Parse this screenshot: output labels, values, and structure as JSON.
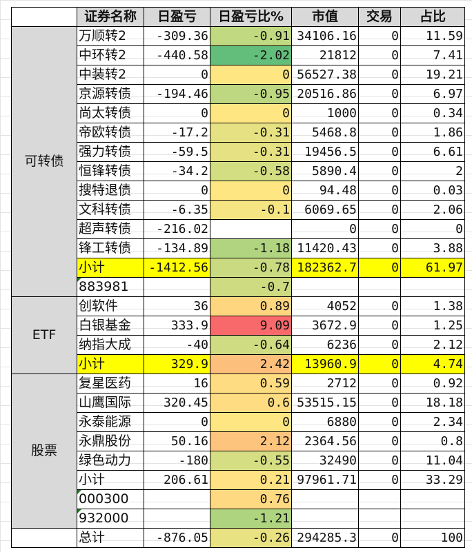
{
  "headers": [
    "",
    "证券名称",
    "日盈亏",
    "日盈亏比%",
    "市值",
    "交易",
    "占比"
  ],
  "groups": [
    {
      "label": "可转债",
      "rows": [
        {
          "name": "万顺转2",
          "pnl": "-309.36",
          "pct": "-0.91",
          "mv": "34106.16",
          "trade": "0",
          "share": "11.59",
          "color": "#c1d980"
        },
        {
          "name": "中环转2",
          "pnl": "-440.58",
          "pct": "-2.02",
          "mv": "21812",
          "trade": "0",
          "share": "7.41",
          "color": "#63be7b"
        },
        {
          "name": "中装转2",
          "pnl": "0",
          "pct": "0",
          "mv": "56527.38",
          "trade": "0",
          "share": "19.21",
          "color": "#fee783"
        },
        {
          "name": "京源转债",
          "pnl": "-194.46",
          "pct": "-0.95",
          "mv": "20516.86",
          "trade": "0",
          "share": "6.97",
          "color": "#bed881"
        },
        {
          "name": "尚太转债",
          "pnl": "0",
          "pct": "0",
          "mv": "1000",
          "trade": "0",
          "share": "0.34",
          "color": "#fee783"
        },
        {
          "name": "帝欧转债",
          "pnl": "-17.2",
          "pct": "-0.31",
          "mv": "5468.8",
          "trade": "0",
          "share": "1.86",
          "color": "#e6e283"
        },
        {
          "name": "强力转债",
          "pnl": "-59.5",
          "pct": "-0.31",
          "mv": "19456.5",
          "trade": "0",
          "share": "6.61",
          "color": "#e6e283"
        },
        {
          "name": "恒锋转债",
          "pnl": "-34.2",
          "pct": "-0.58",
          "mv": "5890.4",
          "trade": "0",
          "share": "2",
          "color": "#d3dd82"
        },
        {
          "name": "搜特退债",
          "pnl": "0",
          "pct": "0",
          "mv": "94.48",
          "trade": "0",
          "share": "0.03",
          "color": "#fee783"
        },
        {
          "name": "文科转债",
          "pnl": "-6.35",
          "pct": "-0.1",
          "mv": "6069.65",
          "trade": "0",
          "share": "2.06",
          "color": "#f5e583"
        },
        {
          "name": "超声转债",
          "pnl": "-216.02",
          "pct": "",
          "mv": "0",
          "trade": "0",
          "share": "0",
          "color": "#ffffff"
        },
        {
          "name": "锋工转债",
          "pnl": "-134.89",
          "pct": "-1.18",
          "mv": "11420.43",
          "trade": "0",
          "share": "3.88",
          "color": "#b0d47f"
        },
        {
          "name": "小计",
          "pnl": "-1412.56",
          "pct": "-0.78",
          "mv": "182362.7",
          "trade": "0",
          "share": "61.97",
          "color": "#c9da81",
          "subtotal": true
        },
        {
          "name": "883981",
          "pnl": "",
          "pct": "-0.7",
          "mv": "",
          "trade": "",
          "share": "",
          "color": "#cedb81",
          "flag": true
        }
      ]
    },
    {
      "label": "ETF",
      "rows": [
        {
          "name": "创软件",
          "pnl": "36",
          "pct": "0.89",
          "mv": "4052",
          "trade": "0",
          "share": "1.38",
          "color": "#fed680"
        },
        {
          "name": "白银基金",
          "pnl": "333.9",
          "pct": "9.09",
          "mv": "3672.9",
          "trade": "0",
          "share": "1.25",
          "color": "#f8696b"
        },
        {
          "name": "纳指大成",
          "pnl": "-40",
          "pct": "-0.64",
          "mv": "6236",
          "trade": "0",
          "share": "2.12",
          "color": "#cfdc81"
        },
        {
          "name": "小计",
          "pnl": "329.9",
          "pct": "2.42",
          "mv": "13960.9",
          "trade": "0",
          "share": "4.74",
          "color": "#fdc07c",
          "subtotal": true
        }
      ]
    },
    {
      "label": "股票",
      "rows": [
        {
          "name": "复星医药",
          "pnl": "16",
          "pct": "0.59",
          "mv": "2712",
          "trade": "0",
          "share": "0.92",
          "color": "#fedc81"
        },
        {
          "name": "山鹰国际",
          "pnl": "320.45",
          "pct": "0.6",
          "mv": "53515.15",
          "trade": "0",
          "share": "18.18",
          "color": "#fedc81"
        },
        {
          "name": "永泰能源",
          "pnl": "0",
          "pct": "0",
          "mv": "6880",
          "trade": "0",
          "share": "2.34",
          "color": "#fee783"
        },
        {
          "name": "永鼎股份",
          "pnl": "50.16",
          "pct": "2.12",
          "mv": "2364.56",
          "trade": "0",
          "share": "0.8",
          "color": "#fdc47d"
        },
        {
          "name": "绿色动力",
          "pnl": "-180",
          "pct": "-0.55",
          "mv": "32490",
          "trade": "0",
          "share": "11.04",
          "color": "#d5de82"
        },
        {
          "name": "小计",
          "pnl": "206.61",
          "pct": "0.21",
          "mv": "97961.71",
          "trade": "0",
          "share": "33.29",
          "color": "#ffe283"
        },
        {
          "name": "000300",
          "pnl": "",
          "pct": "0.76",
          "mv": "",
          "trade": "",
          "share": "",
          "color": "#fed981",
          "flag": true
        },
        {
          "name": "932000",
          "pnl": "",
          "pct": "-1.21",
          "mv": "",
          "trade": "",
          "share": "",
          "color": "#aed47f",
          "flag": true
        }
      ]
    },
    {
      "label": "",
      "rows": [
        {
          "name": "总计",
          "pnl": "-876.05",
          "pct": "-0.26",
          "mv": "294285.3",
          "trade": "0",
          "share": "100",
          "color": "#e8e283"
        }
      ]
    }
  ]
}
